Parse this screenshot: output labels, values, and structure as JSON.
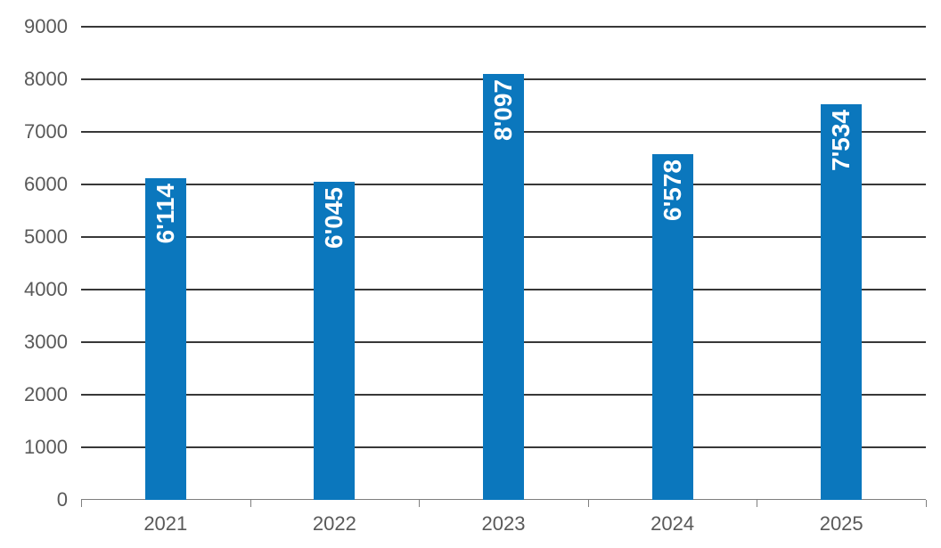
{
  "chart_data": {
    "type": "bar",
    "categories": [
      "2021",
      "2022",
      "2023",
      "2024",
      "2025"
    ],
    "values": [
      6114,
      6045,
      8097,
      6578,
      7534
    ],
    "value_labels": [
      "6'114",
      "6'045",
      "8'097",
      "6'578",
      "7'534"
    ],
    "value_label_position": "inside-end-rotated-up",
    "ylim": [
      0,
      9000
    ],
    "yticks": [
      0,
      1000,
      2000,
      3000,
      4000,
      5000,
      6000,
      7000,
      8000,
      9000
    ],
    "ytick_labels": [
      "0",
      "1000",
      "2000",
      "3000",
      "4000",
      "5000",
      "6000",
      "7000",
      "8000",
      "9000"
    ],
    "grid": true,
    "legend": "none",
    "xlabel": "",
    "ylabel": "",
    "colors": {
      "bar": "#0B77BD",
      "value_label": "#FFFFFF",
      "gridline": "#383838",
      "axis_line": "#7F7F7F",
      "tick_label": "#595959",
      "background": "#FFFFFF"
    }
  }
}
